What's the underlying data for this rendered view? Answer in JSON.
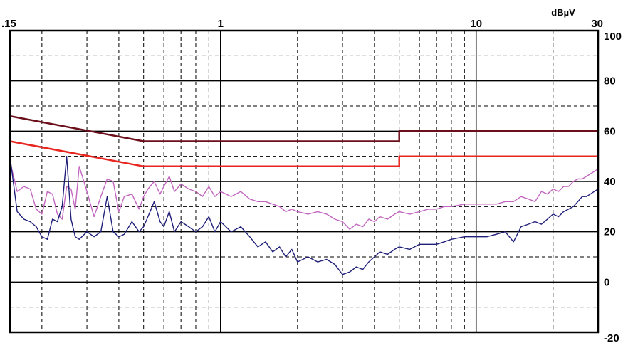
{
  "chart_data": {
    "type": "line",
    "title": "",
    "unit_label": "dBµV",
    "xscale": "log",
    "xlim": [
      0.15,
      30
    ],
    "ylim": [
      -20,
      100
    ],
    "grid": true,
    "x_ticks": [
      {
        "value": 0.15,
        "label": ".15"
      },
      {
        "value": 1,
        "label": "1"
      },
      {
        "value": 10,
        "label": "10"
      },
      {
        "value": 30,
        "label": "30"
      }
    ],
    "y_ticks": [
      {
        "value": 100,
        "label": "100"
      },
      {
        "value": 80,
        "label": "80"
      },
      {
        "value": 60,
        "label": "60"
      },
      {
        "value": 40,
        "label": "40"
      },
      {
        "value": 20,
        "label": "20"
      },
      {
        "value": 0,
        "label": "0"
      },
      {
        "value": -20,
        "label": "-20"
      }
    ],
    "colors": {
      "limit_qp": "#6b0f1a",
      "limit_avg": "#e8261f",
      "scan_peak": "#c266c0",
      "scan_avg": "#1f1f7a",
      "grid": "#000000"
    },
    "series": [
      {
        "key": "limit_qp",
        "x": [
          0.15,
          0.5,
          0.5,
          5,
          5,
          30
        ],
        "y": [
          66,
          56,
          56,
          56,
          60,
          60
        ]
      },
      {
        "key": "limit_avg",
        "x": [
          0.15,
          0.5,
          0.5,
          5,
          5,
          30
        ],
        "y": [
          56,
          46,
          46,
          46,
          50,
          50
        ]
      },
      {
        "key": "scan_peak",
        "x": [
          0.15,
          0.16,
          0.17,
          0.18,
          0.19,
          0.2,
          0.21,
          0.22,
          0.23,
          0.24,
          0.25,
          0.26,
          0.27,
          0.28,
          0.3,
          0.32,
          0.34,
          0.36,
          0.38,
          0.4,
          0.42,
          0.45,
          0.48,
          0.5,
          0.52,
          0.55,
          0.58,
          0.6,
          0.63,
          0.66,
          0.7,
          0.75,
          0.8,
          0.85,
          0.9,
          0.95,
          1.0,
          1.1,
          1.2,
          1.3,
          1.4,
          1.5,
          1.6,
          1.7,
          1.8,
          1.9,
          2.0,
          2.2,
          2.4,
          2.6,
          2.8,
          3.0,
          3.2,
          3.4,
          3.6,
          3.8,
          4.0,
          4.2,
          4.5,
          4.8,
          5.0,
          5.5,
          6.0,
          6.5,
          7.0,
          7.5,
          8.0,
          9.0,
          10.0,
          11.0,
          12.0,
          13.0,
          14.0,
          15.0,
          16.0,
          17.0,
          18.0,
          19.0,
          20.0,
          21.0,
          22.0,
          23.0,
          24.0,
          25.0,
          26.0,
          27.0,
          28.0,
          29.0,
          30.0
        ],
        "y": [
          48,
          36,
          38,
          37,
          29,
          27,
          36,
          35,
          27,
          25,
          38,
          37,
          29,
          46,
          36,
          26,
          34,
          41,
          40,
          28,
          34,
          35,
          29,
          34,
          37,
          40,
          35,
          38,
          42,
          36,
          39,
          37,
          36,
          34,
          38,
          34,
          36,
          34,
          36,
          33,
          32,
          32,
          31,
          30,
          28,
          29,
          28,
          27,
          28,
          27,
          25,
          24,
          21,
          23,
          22,
          25,
          24,
          26,
          25,
          27,
          28,
          27,
          28,
          29,
          29,
          30,
          30,
          31,
          31,
          31,
          31,
          32,
          32,
          34,
          33,
          32,
          36,
          35,
          37,
          36,
          38,
          38,
          40,
          41,
          41,
          42,
          43,
          44,
          45
        ]
      },
      {
        "key": "scan_avg",
        "x": [
          0.15,
          0.16,
          0.17,
          0.18,
          0.19,
          0.2,
          0.21,
          0.22,
          0.23,
          0.24,
          0.25,
          0.26,
          0.27,
          0.28,
          0.3,
          0.32,
          0.34,
          0.36,
          0.38,
          0.4,
          0.42,
          0.45,
          0.48,
          0.5,
          0.52,
          0.55,
          0.58,
          0.6,
          0.63,
          0.66,
          0.7,
          0.75,
          0.8,
          0.85,
          0.9,
          0.95,
          1.0,
          1.1,
          1.2,
          1.3,
          1.4,
          1.5,
          1.6,
          1.7,
          1.8,
          1.9,
          2.0,
          2.2,
          2.4,
          2.6,
          2.8,
          3.0,
          3.2,
          3.4,
          3.6,
          3.8,
          4.0,
          4.2,
          4.5,
          4.8,
          5.0,
          5.5,
          6.0,
          6.5,
          7.0,
          7.5,
          8.0,
          9.0,
          10.0,
          11.0,
          12.0,
          13.0,
          14.0,
          15.0,
          16.0,
          17.0,
          18.0,
          19.0,
          20.0,
          21.0,
          22.0,
          23.0,
          24.0,
          25.0,
          26.0,
          27.0,
          28.0,
          29.0,
          30.0
        ],
        "y": [
          50,
          28,
          25,
          24,
          22,
          18,
          17,
          25,
          24,
          30,
          50,
          25,
          18,
          17,
          20,
          18,
          20,
          34,
          20,
          18,
          19,
          24,
          20,
          22,
          26,
          32,
          24,
          22,
          28,
          20,
          24,
          22,
          20,
          22,
          26,
          20,
          24,
          20,
          22,
          18,
          14,
          16,
          12,
          14,
          10,
          13,
          8,
          10,
          8,
          9,
          7,
          3,
          4,
          6,
          5,
          8,
          10,
          12,
          11,
          13,
          14,
          13,
          15,
          15,
          15,
          16,
          17,
          18,
          18,
          18,
          19,
          20,
          16,
          22,
          23,
          24,
          23,
          25,
          27,
          26,
          28,
          29,
          30,
          32,
          34,
          34,
          35,
          36,
          37
        ]
      }
    ]
  }
}
